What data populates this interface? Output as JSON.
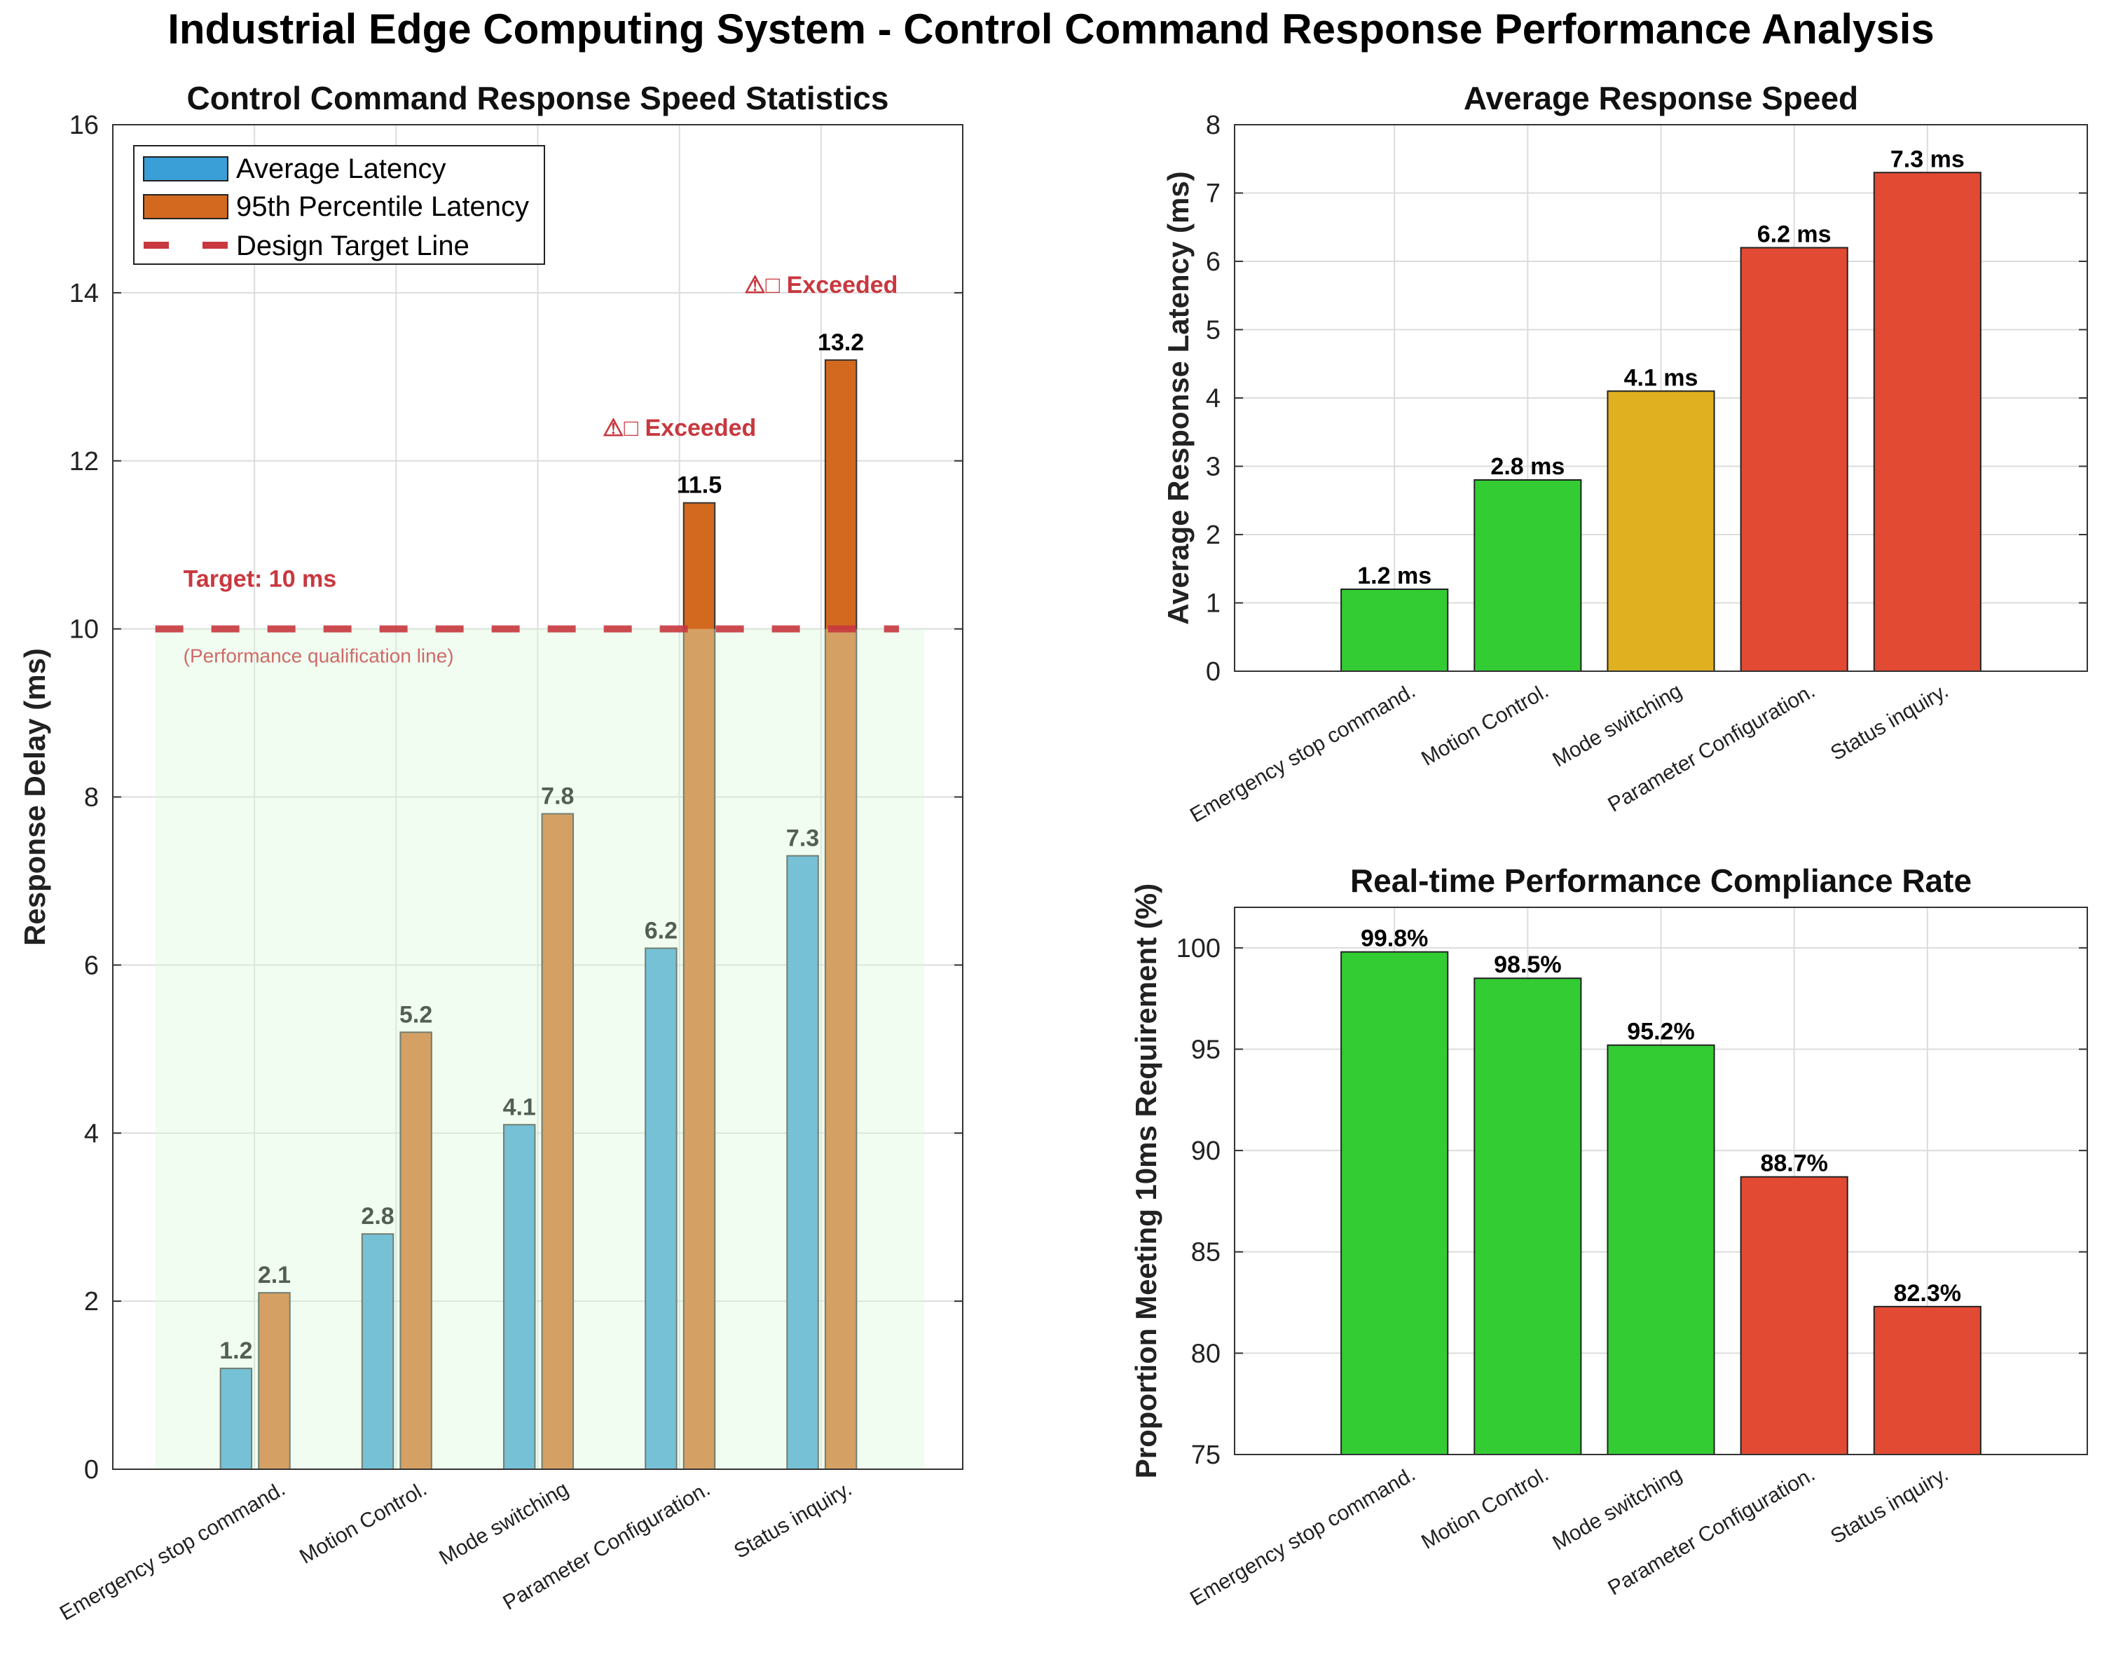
{
  "title": "Industrial Edge Computing System - Control Command Response Performance Analysis",
  "colors": {
    "avg": "#3A9FD6",
    "p95": "#D2691E",
    "target": "#C8383F",
    "green": "#33CC33",
    "yellow": "#E0B020",
    "red": "#E34A33"
  },
  "chart_data": [
    {
      "type": "bar",
      "title": "Control Command Response Speed Statistics",
      "xlabel": "",
      "ylabel": "Response Delay (ms)",
      "ylim": [
        0,
        16
      ],
      "yticks": [
        "0",
        "2",
        "4",
        "6",
        "8",
        "10",
        "12",
        "14",
        "16"
      ],
      "categories": [
        "Emergency stop command.",
        "Motion Control.",
        "Mode switching",
        "Parameter Configuration.",
        "Status inquiry."
      ],
      "series": [
        {
          "name": "Average Latency",
          "values": [
            1.2,
            2.8,
            4.1,
            6.2,
            7.3
          ],
          "labels": [
            "1.2",
            "2.8",
            "4.1",
            "6.2",
            "7.3"
          ]
        },
        {
          "name": "95th Percentile Latency",
          "values": [
            2.1,
            5.2,
            7.8,
            11.5,
            13.2
          ],
          "labels": [
            "2.1",
            "5.2",
            "7.8",
            "11.5",
            "13.2"
          ]
        }
      ],
      "target": {
        "legend": "Design Target Line",
        "value": 10,
        "label": "Target: 10 ms",
        "sublabel": "(Performance qualification line)"
      },
      "annotations": [
        {
          "category_index": 3,
          "y": 12.3,
          "text": "⚠□ Exceeded"
        },
        {
          "category_index": 4,
          "y": 14.0,
          "text": "⚠□ Exceeded"
        }
      ],
      "legend_position": "top-left",
      "grid": true
    },
    {
      "type": "bar",
      "title": "Average Response Speed",
      "ylabel": "Average Response Latency (ms)",
      "ylim": [
        0,
        8
      ],
      "yticks": [
        "0",
        "1",
        "2",
        "3",
        "4",
        "5",
        "6",
        "7",
        "8"
      ],
      "categories": [
        "Emergency stop command.",
        "Motion Control.",
        "Mode switching",
        "Parameter Configuration.",
        "Status inquiry."
      ],
      "values": [
        1.2,
        2.8,
        4.1,
        6.2,
        7.3
      ],
      "labels": [
        "1.2 ms",
        "2.8 ms",
        "4.1 ms",
        "6.2 ms",
        "7.3 ms"
      ],
      "bar_colors": [
        "green",
        "green",
        "yellow",
        "red",
        "red"
      ],
      "grid": true
    },
    {
      "type": "bar",
      "title": "Real-time Performance Compliance Rate",
      "ylabel": "Proportion Meeting 10ms Requirement (%)",
      "ylim": [
        75,
        102
      ],
      "yticks": [
        "75",
        "80",
        "85",
        "90",
        "95",
        "100"
      ],
      "categories": [
        "Emergency stop command.",
        "Motion Control.",
        "Mode switching",
        "Parameter Configuration.",
        "Status inquiry."
      ],
      "values": [
        99.8,
        98.5,
        95.2,
        88.7,
        82.3
      ],
      "labels": [
        "99.8%",
        "98.5%",
        "95.2%",
        "88.7%",
        "82.3%"
      ],
      "bar_colors": [
        "green",
        "green",
        "green",
        "red",
        "red"
      ],
      "grid": true
    }
  ]
}
